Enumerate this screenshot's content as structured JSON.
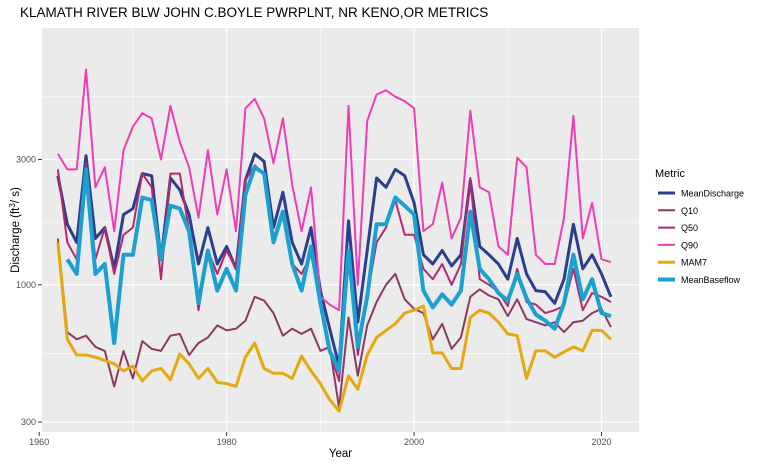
{
  "chart_data": {
    "type": "line",
    "title": "KLAMATH RIVER BLW JOHN C.BOYLE PWRPLNT, NR KENO,OR  METRICS",
    "xlabel": "Year",
    "ylabel_prefix": "Discharge (ft",
    "ylabel_sup": "3",
    "ylabel_suffix": "/ s)",
    "xlim": [
      1960.3,
      2024.0
    ],
    "ylim": [
      275,
      9500
    ],
    "y_scale": "log10",
    "x_ticks": [
      1960,
      1980,
      2000,
      2020
    ],
    "x_tick_labels": [
      "1960",
      "1980",
      "2000",
      "2020"
    ],
    "y_ticks": [
      300,
      1000,
      3000
    ],
    "y_tick_labels": [
      "300",
      "1000",
      "3000"
    ],
    "grid": true,
    "legend": {
      "title": "Metric",
      "position": "right"
    },
    "x": [
      1962,
      1963,
      1964,
      1965,
      1966,
      1967,
      1968,
      1969,
      1970,
      1971,
      1972,
      1973,
      1974,
      1975,
      1976,
      1977,
      1978,
      1979,
      1980,
      1981,
      1982,
      1983,
      1984,
      1985,
      1986,
      1987,
      1988,
      1989,
      1990,
      1991,
      1992,
      1993,
      1994,
      1995,
      1996,
      1997,
      1998,
      1999,
      2000,
      2001,
      2002,
      2003,
      2004,
      2005,
      2006,
      2007,
      2008,
      2009,
      2010,
      2011,
      2012,
      2013,
      2014,
      2015,
      2016,
      2017,
      2018,
      2019,
      2020,
      2021
    ],
    "series": [
      {
        "name": "MeanDischarge",
        "color": "#2c3e8c",
        "width": 3,
        "values": [
          2600,
          1700,
          1450,
          3100,
          1500,
          1650,
          1150,
          1850,
          1950,
          2650,
          2600,
          1250,
          2550,
          2300,
          1850,
          1200,
          1650,
          1200,
          1400,
          1150,
          2500,
          3150,
          2950,
          1650,
          2250,
          1450,
          1200,
          1650,
          950,
          680,
          490,
          1750,
          720,
          1350,
          2550,
          2350,
          2750,
          2600,
          2050,
          1300,
          1200,
          1350,
          1180,
          1300,
          2500,
          1400,
          1300,
          1200,
          1050,
          1500,
          1100,
          950,
          940,
          850,
          1050,
          1700,
          1150,
          1300,
          1100,
          900
        ]
      },
      {
        "name": "Q10",
        "color": "#8b3a62",
        "width": 2,
        "values": [
          1500,
          660,
          620,
          640,
          580,
          560,
          410,
          560,
          440,
          610,
          570,
          560,
          640,
          650,
          540,
          600,
          630,
          700,
          670,
          680,
          730,
          900,
          870,
          780,
          640,
          680,
          650,
          680,
          560,
          580,
          340,
          750,
          450,
          700,
          860,
          1000,
          1100,
          880,
          810,
          780,
          620,
          710,
          570,
          630,
          900,
          960,
          910,
          880,
          760,
          880,
          740,
          720,
          700,
          720,
          660,
          720,
          730,
          780,
          810,
          690
        ]
      },
      {
        "name": "Q50",
        "color": "#b5286f",
        "width": 2,
        "values": [
          2750,
          1450,
          1250,
          2900,
          1250,
          1650,
          1100,
          1550,
          1650,
          2650,
          2350,
          1050,
          2650,
          2650,
          1600,
          800,
          1350,
          1100,
          1350,
          1150,
          2500,
          2850,
          2650,
          1500,
          1900,
          1200,
          1100,
          1300,
          900,
          560,
          430,
          1350,
          540,
          900,
          1450,
          1650,
          2100,
          1550,
          1550,
          1150,
          1050,
          1200,
          1000,
          1200,
          2550,
          1050,
          1000,
          940,
          830,
          1150,
          860,
          840,
          780,
          800,
          830,
          1150,
          800,
          930,
          900,
          860
        ]
      },
      {
        "name": "Q90",
        "color": "#ef3db5",
        "width": 2,
        "values": [
          3150,
          2750,
          2750,
          6600,
          2350,
          2800,
          1600,
          3250,
          4000,
          4500,
          4300,
          3000,
          4800,
          3500,
          2800,
          1800,
          3250,
          1850,
          2750,
          1600,
          4700,
          5100,
          4300,
          2900,
          4300,
          2400,
          1600,
          2350,
          900,
          840,
          800,
          4800,
          1000,
          4200,
          5300,
          5500,
          5200,
          5000,
          4700,
          1600,
          1700,
          2450,
          1500,
          1800,
          4600,
          2350,
          2250,
          1400,
          1300,
          3050,
          2800,
          1300,
          1200,
          1200,
          1800,
          4400,
          1500,
          2050,
          1250,
          1220
        ]
      },
      {
        "name": "MAM7",
        "color": "#e5a90f",
        "width": 3,
        "values": [
          1450,
          620,
          540,
          540,
          530,
          515,
          500,
          470,
          490,
          430,
          470,
          480,
          435,
          545,
          500,
          440,
          480,
          425,
          420,
          410,
          530,
          600,
          480,
          460,
          460,
          440,
          535,
          470,
          420,
          365,
          330,
          450,
          400,
          540,
          630,
          670,
          710,
          780,
          800,
          830,
          550,
          550,
          480,
          480,
          750,
          800,
          780,
          720,
          650,
          640,
          440,
          560,
          560,
          530,
          555,
          580,
          560,
          670,
          670,
          620
        ]
      },
      {
        "name": "MeanBaseflow",
        "color": "#1ba0cf",
        "width": 4,
        "values": [
          null,
          1250,
          1100,
          2750,
          1100,
          1200,
          600,
          1300,
          1300,
          2150,
          2100,
          1250,
          2000,
          1950,
          1600,
          850,
          1350,
          950,
          1150,
          950,
          2200,
          2800,
          2650,
          1450,
          1900,
          1200,
          950,
          1400,
          850,
          560,
          470,
          1350,
          580,
          900,
          1700,
          1700,
          2150,
          2000,
          1850,
          950,
          820,
          920,
          840,
          950,
          1900,
          1150,
          1050,
          930,
          870,
          1100,
          890,
          770,
          730,
          680,
          850,
          1300,
          880,
          1050,
          780,
          760
        ]
      }
    ]
  }
}
